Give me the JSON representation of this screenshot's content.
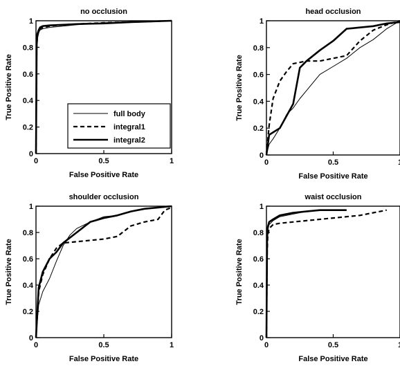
{
  "chart_data": [
    {
      "type": "line",
      "title": "no occlusion",
      "xlabel": "False Positive Rate",
      "ylabel": "True Positive Rate",
      "xlim": [
        0,
        1
      ],
      "ylim": [
        0,
        1
      ],
      "xticks": [
        0,
        0.5,
        1
      ],
      "xtick_labels": [
        "0",
        "0.5",
        "1"
      ],
      "yticks": [
        0,
        0.2,
        0.4,
        0.6,
        0.8,
        1
      ],
      "ytick_labels": [
        "0",
        "0.2",
        "0.4",
        "0.6",
        "0.8",
        "1"
      ],
      "grid": false,
      "legend": {
        "placement": "bottom-right",
        "entries": [
          "full body",
          "integral1",
          "integral2"
        ]
      },
      "series": [
        {
          "name": "full body",
          "style": "thin-solid",
          "x": [
            0,
            0.005,
            0.01,
            0.02,
            0.03,
            0.05,
            0.1,
            0.2,
            0.3,
            0.5,
            0.7,
            1.0
          ],
          "y": [
            0,
            0.75,
            0.86,
            0.91,
            0.93,
            0.94,
            0.95,
            0.96,
            0.97,
            0.985,
            0.99,
            1.0
          ]
        },
        {
          "name": "integral1",
          "style": "dashed",
          "x": [
            0,
            0.005,
            0.01,
            0.02,
            0.03,
            0.05,
            0.1,
            0.2,
            0.3,
            0.5,
            0.7,
            1.0
          ],
          "y": [
            0,
            0.8,
            0.88,
            0.92,
            0.94,
            0.95,
            0.96,
            0.97,
            0.975,
            0.985,
            0.99,
            1.0
          ]
        },
        {
          "name": "integral2",
          "style": "thick-solid",
          "x": [
            0,
            0.005,
            0.01,
            0.02,
            0.03,
            0.05,
            0.1,
            0.2,
            0.3,
            0.5,
            0.7,
            1.0
          ],
          "y": [
            0,
            0.82,
            0.9,
            0.93,
            0.95,
            0.96,
            0.965,
            0.97,
            0.975,
            0.98,
            0.99,
            1.0
          ]
        }
      ]
    },
    {
      "type": "line",
      "title": "head occlusion",
      "xlabel": "False Positive Rate",
      "ylabel": "True Positive Rate",
      "xlim": [
        0,
        1
      ],
      "ylim": [
        0,
        1
      ],
      "xticks": [
        0,
        0.5,
        1
      ],
      "xtick_labels": [
        "0",
        "0.5",
        "1"
      ],
      "yticks": [
        0,
        0.2,
        0.4,
        0.6,
        0.8,
        1
      ],
      "ytick_labels": [
        "0",
        "0.2",
        "0.4",
        "0.6",
        "0.8",
        "1"
      ],
      "grid": false,
      "series": [
        {
          "name": "full body",
          "style": "thin-solid",
          "x": [
            0,
            0.02,
            0.05,
            0.1,
            0.15,
            0.2,
            0.25,
            0.3,
            0.4,
            0.5,
            0.6,
            0.7,
            0.8,
            0.9,
            1.0
          ],
          "y": [
            0,
            0.08,
            0.12,
            0.2,
            0.3,
            0.35,
            0.42,
            0.48,
            0.6,
            0.66,
            0.72,
            0.8,
            0.86,
            0.94,
            1.0
          ]
        },
        {
          "name": "integral1",
          "style": "dashed",
          "x": [
            0,
            0.02,
            0.05,
            0.1,
            0.15,
            0.2,
            0.3,
            0.4,
            0.5,
            0.6,
            0.7,
            0.8,
            0.9,
            1.0
          ],
          "y": [
            0,
            0.22,
            0.42,
            0.55,
            0.62,
            0.68,
            0.7,
            0.7,
            0.72,
            0.74,
            0.85,
            0.93,
            0.97,
            1.0
          ]
        },
        {
          "name": "integral2",
          "style": "thick-solid",
          "x": [
            0,
            0.02,
            0.1,
            0.2,
            0.25,
            0.3,
            0.4,
            0.5,
            0.6,
            0.7,
            0.8,
            0.9,
            1.0
          ],
          "y": [
            0,
            0.15,
            0.2,
            0.38,
            0.65,
            0.7,
            0.78,
            0.85,
            0.94,
            0.95,
            0.96,
            0.98,
            0.99
          ]
        }
      ]
    },
    {
      "type": "line",
      "title": "shoulder occlusion",
      "xlabel": "False Positive Rate",
      "ylabel": "True Positive Rate",
      "xlim": [
        0,
        1
      ],
      "ylim": [
        0,
        1
      ],
      "xticks": [
        0,
        0.5,
        1
      ],
      "xtick_labels": [
        "0",
        "0.5",
        "1"
      ],
      "yticks": [
        0,
        0.2,
        0.4,
        0.6,
        0.8,
        1
      ],
      "ytick_labels": [
        "0",
        "0.2",
        "0.4",
        "0.6",
        "0.8",
        "1"
      ],
      "grid": false,
      "series": [
        {
          "name": "full body",
          "style": "thin-solid",
          "x": [
            0,
            0.02,
            0.05,
            0.1,
            0.15,
            0.2,
            0.25,
            0.3,
            0.4,
            0.5,
            0.6,
            0.7,
            0.8,
            0.9,
            1.0
          ],
          "y": [
            0,
            0.25,
            0.35,
            0.45,
            0.58,
            0.7,
            0.78,
            0.83,
            0.88,
            0.92,
            0.93,
            0.96,
            0.98,
            0.99,
            1.0
          ]
        },
        {
          "name": "integral1",
          "style": "dashed",
          "x": [
            0,
            0.02,
            0.05,
            0.1,
            0.15,
            0.2,
            0.3,
            0.4,
            0.5,
            0.6,
            0.7,
            0.8,
            0.9,
            0.95,
            1.0
          ],
          "y": [
            0,
            0.35,
            0.48,
            0.6,
            0.68,
            0.72,
            0.73,
            0.74,
            0.75,
            0.77,
            0.85,
            0.88,
            0.9,
            0.97,
            0.99
          ]
        },
        {
          "name": "integral2",
          "style": "thick-solid",
          "x": [
            0,
            0.02,
            0.05,
            0.1,
            0.15,
            0.2,
            0.3,
            0.4,
            0.5,
            0.6,
            0.7,
            0.8,
            0.9,
            1.0
          ],
          "y": [
            0,
            0.38,
            0.5,
            0.6,
            0.65,
            0.72,
            0.8,
            0.88,
            0.91,
            0.93,
            0.96,
            0.98,
            0.99,
            1.0
          ]
        }
      ]
    },
    {
      "type": "line",
      "title": "waist occlusion",
      "xlabel": "False Positive Rate",
      "ylabel": "True Positive Rate",
      "xlim": [
        0,
        1
      ],
      "ylim": [
        0,
        1
      ],
      "xticks": [
        0,
        0.5,
        1
      ],
      "xtick_labels": [
        "0",
        "0.5",
        "1"
      ],
      "yticks": [
        0,
        0.2,
        0.4,
        0.6,
        0.8,
        1
      ],
      "ytick_labels": [
        "0",
        "0.2",
        "0.4",
        "0.6",
        "0.8",
        "1"
      ],
      "grid": false,
      "series": [
        {
          "name": "full body",
          "style": "thin-solid",
          "x": [
            0,
            0.005,
            0.01,
            0.02,
            0.05,
            0.1,
            0.2,
            0.3,
            0.4,
            0.5,
            0.6
          ],
          "y": [
            0,
            0.7,
            0.82,
            0.86,
            0.89,
            0.92,
            0.94,
            0.96,
            0.97,
            0.97,
            0.97
          ]
        },
        {
          "name": "integral1",
          "style": "dashed",
          "x": [
            0,
            0.005,
            0.01,
            0.02,
            0.05,
            0.1,
            0.2,
            0.3,
            0.4,
            0.5,
            0.6,
            0.7,
            0.8,
            0.9
          ],
          "y": [
            0,
            0.65,
            0.78,
            0.83,
            0.86,
            0.87,
            0.88,
            0.89,
            0.9,
            0.91,
            0.92,
            0.93,
            0.95,
            0.97
          ]
        },
        {
          "name": "integral2",
          "style": "thick-solid",
          "x": [
            0,
            0.005,
            0.01,
            0.02,
            0.05,
            0.1,
            0.2,
            0.3,
            0.4,
            0.5,
            0.6
          ],
          "y": [
            0,
            0.75,
            0.84,
            0.88,
            0.9,
            0.93,
            0.95,
            0.96,
            0.97,
            0.97,
            0.97
          ]
        }
      ]
    }
  ]
}
